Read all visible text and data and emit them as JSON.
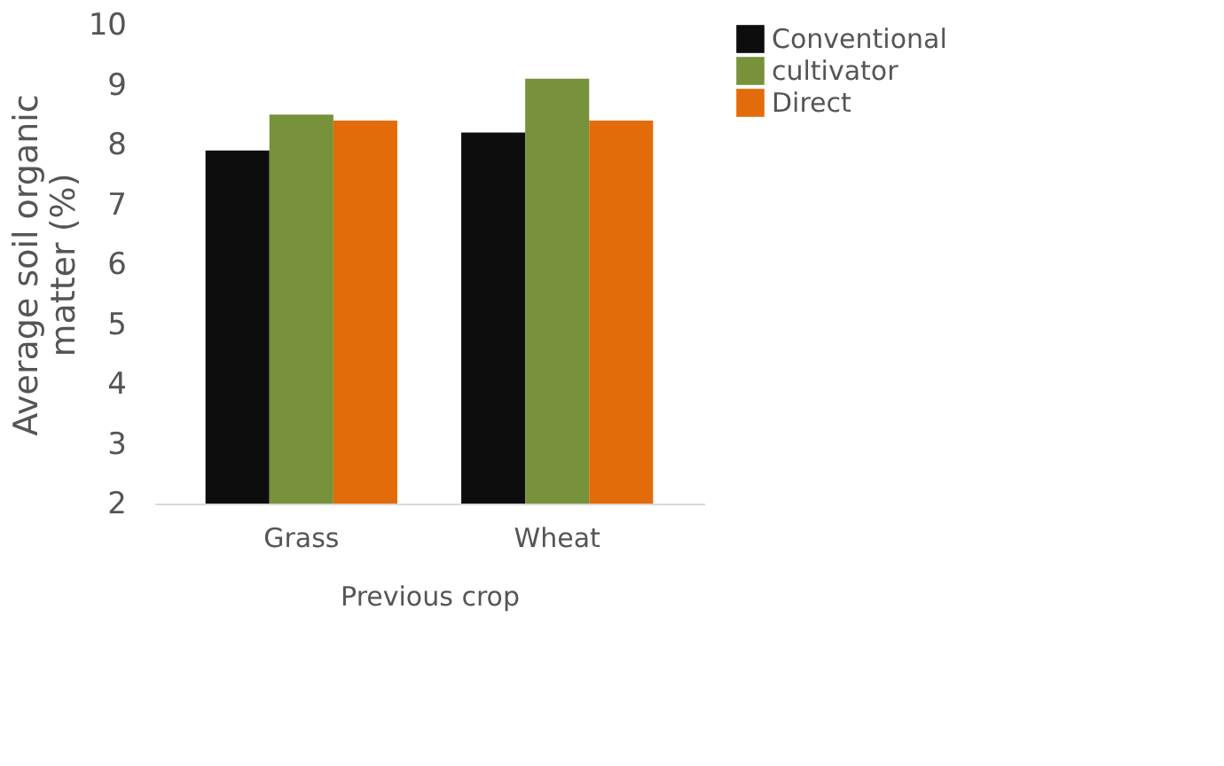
{
  "chart_data": {
    "type": "bar",
    "xlabel": "Previous crop",
    "ylabel": "Average soil organic matter (%)",
    "categories": [
      "Grass",
      "Wheat"
    ],
    "series": [
      {
        "name": "Conventional",
        "color": "#0d0d0d",
        "values": [
          7.9,
          8.2
        ]
      },
      {
        "name": "cultivator",
        "color": "#77923b",
        "values": [
          8.5,
          9.1
        ]
      },
      {
        "name": "Direct",
        "color": "#e36c0a",
        "values": [
          8.4,
          8.4
        ]
      }
    ],
    "ylim": [
      2,
      10
    ],
    "yticks": [
      2,
      3,
      4,
      5,
      6,
      7,
      8,
      9,
      10
    ],
    "grid": false,
    "legend": "top right"
  }
}
